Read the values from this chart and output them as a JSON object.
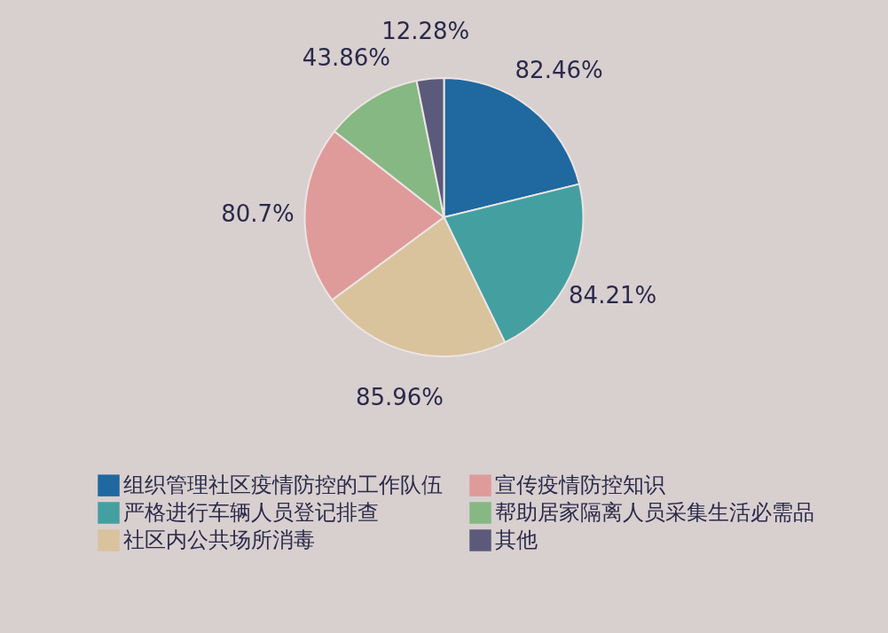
{
  "chart_data": {
    "type": "pie",
    "categories": [
      "组织管理社区疫情防控的工作队伍",
      "严格进行车辆人员登记排查",
      "社区内公共场所消毒",
      "宣传疫情防控知识",
      "帮助居家隔离人员采集生活必需品",
      "其他"
    ],
    "values": [
      82.46,
      84.21,
      85.96,
      80.7,
      43.86,
      12.28
    ],
    "value_labels": [
      "82.46%",
      "84.21%",
      "85.96%",
      "80.7%",
      "43.86%",
      "12.28%"
    ],
    "colors": [
      "#1f68a0",
      "#44a0a0",
      "#d9c39c",
      "#df9a9a",
      "#86b883",
      "#5b5a7b"
    ],
    "legend": "bottom"
  }
}
